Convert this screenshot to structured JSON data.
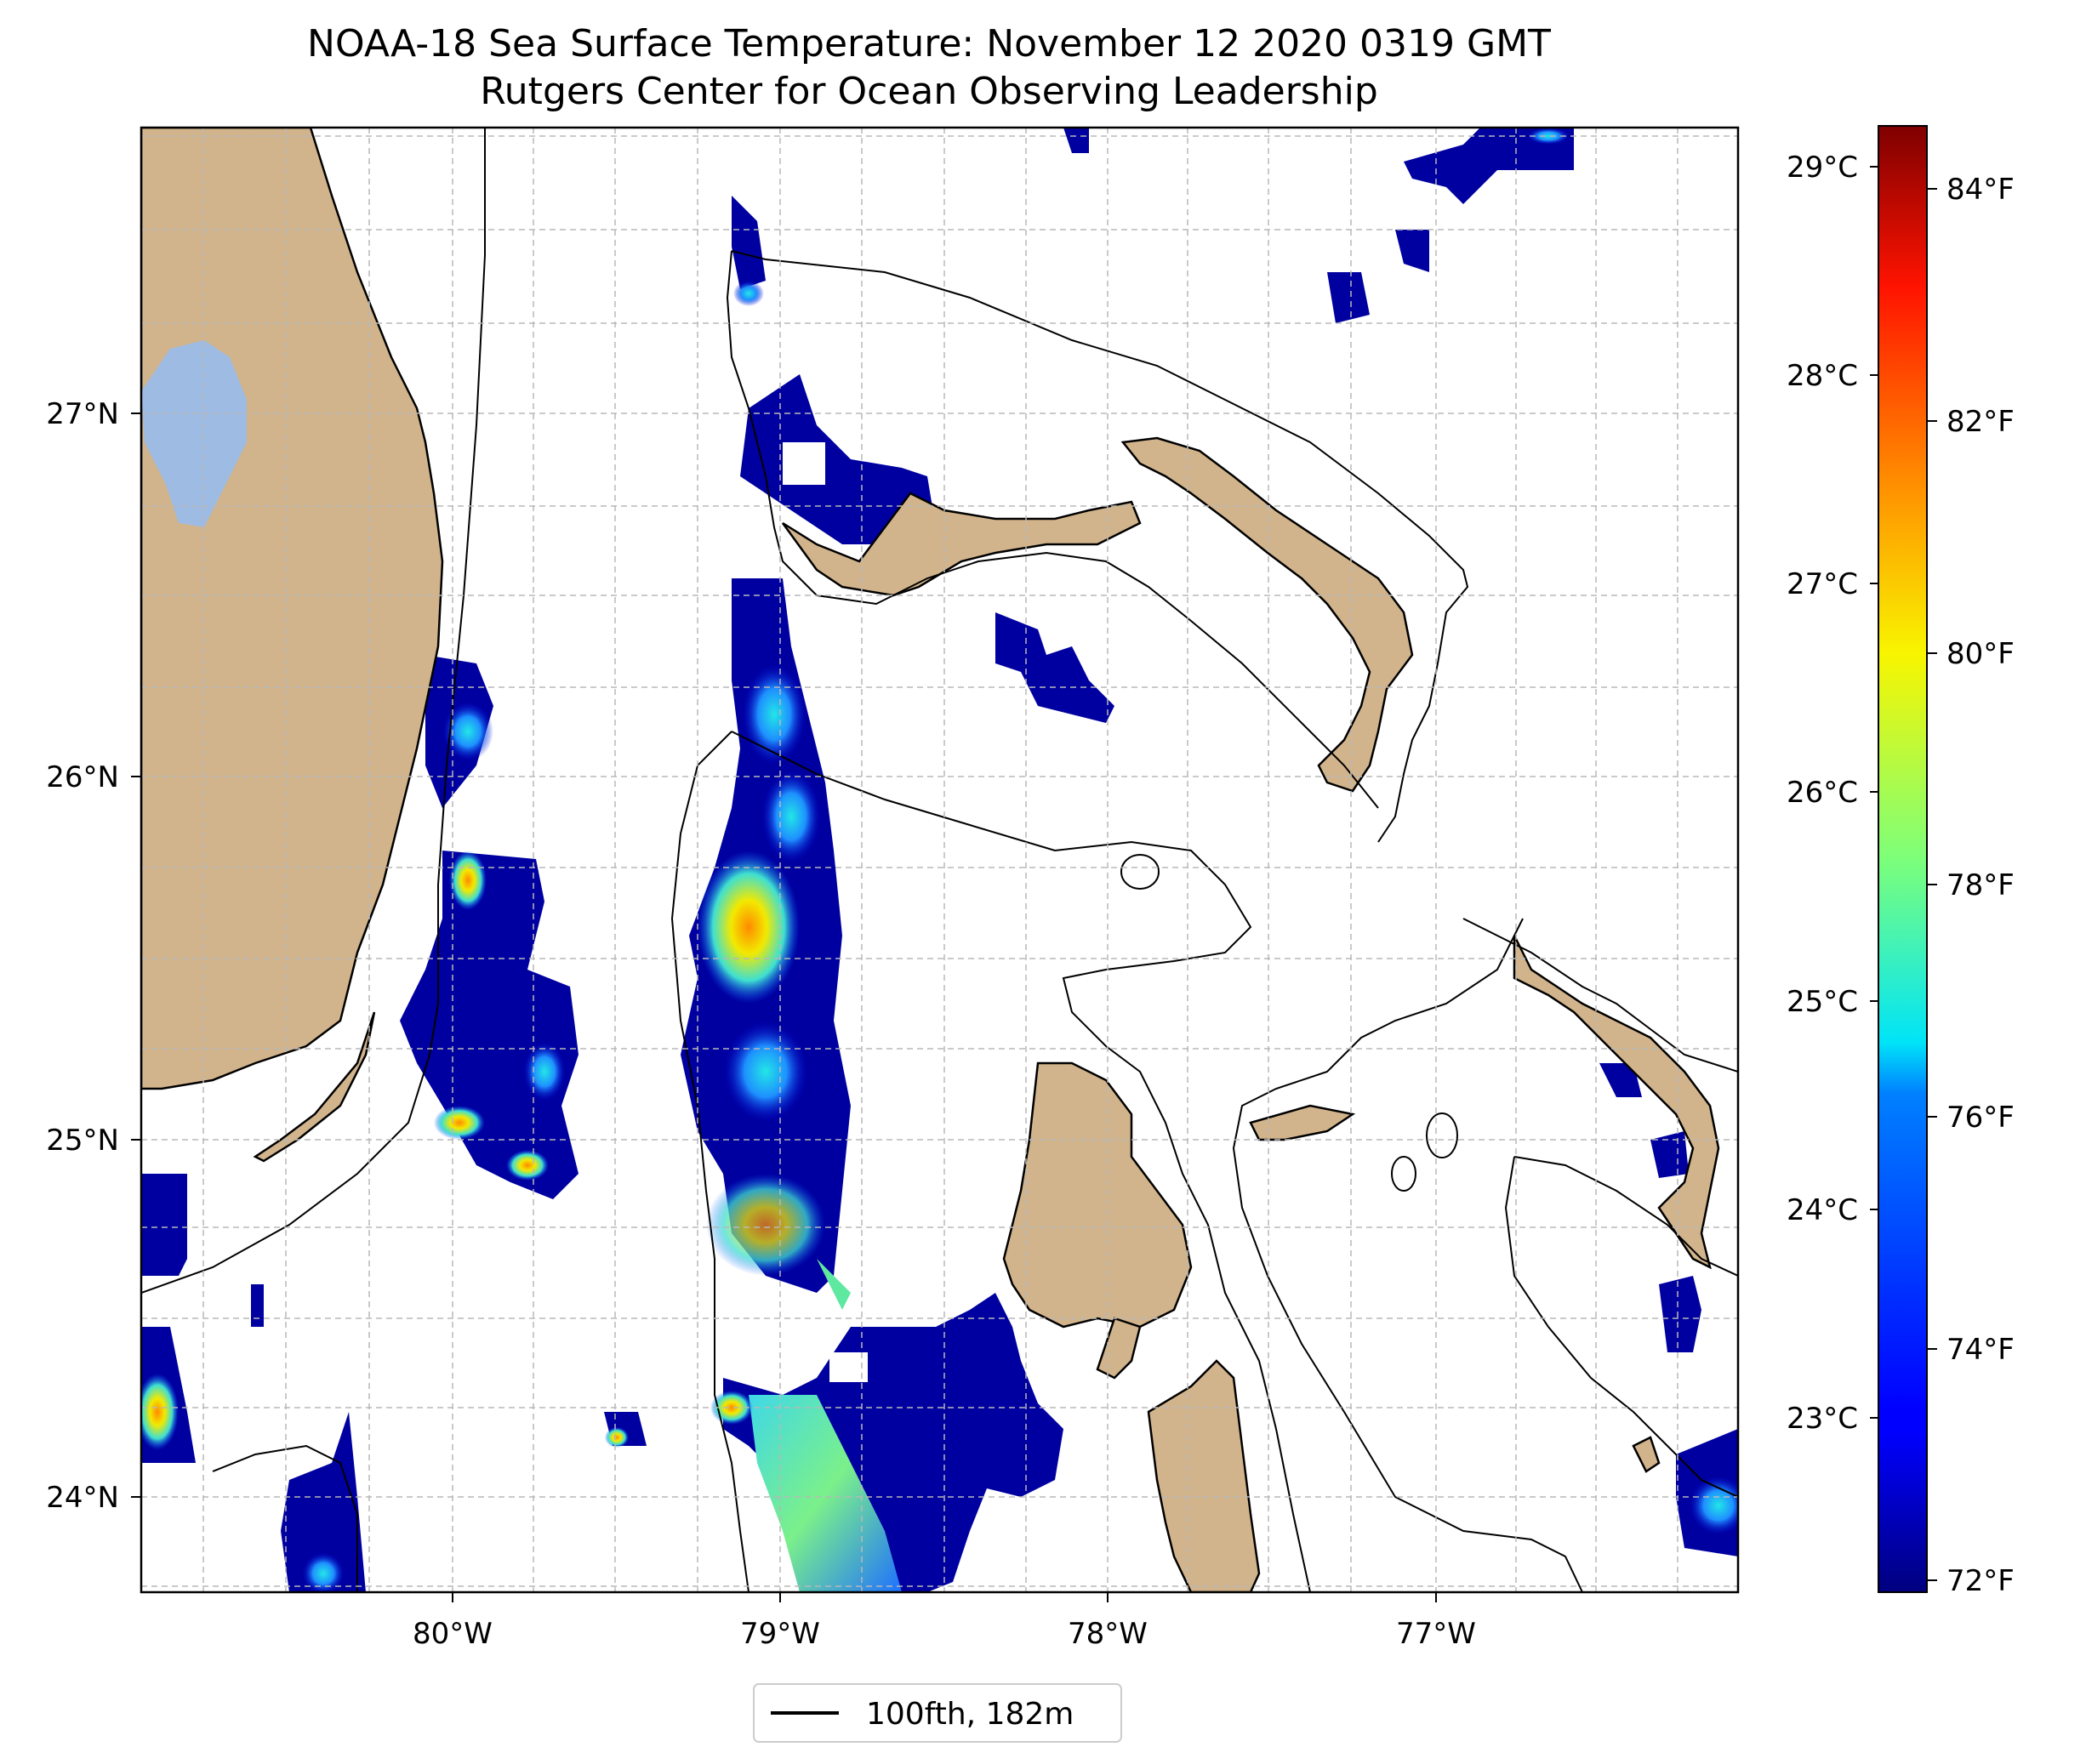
{
  "title_line1": "NOAA-18 Sea Surface Temperature: November 12 2020 0319 GMT",
  "title_line2": "Rutgers Center for Ocean Observing Leadership",
  "map": {
    "lon_labels": [
      "80°W",
      "79°W",
      "78°W",
      "77°W"
    ],
    "lat_labels": [
      "27°N",
      "26°N",
      "25°N",
      "24°N"
    ],
    "colors": {
      "land": "#d2b48c",
      "lake": "#9dbbe3",
      "ocean": "#ffffff",
      "grid": "#bbbbbb"
    },
    "legend": {
      "label": "100fth, 182m"
    }
  },
  "colorbar": {
    "celsius_labels": [
      "29°C",
      "28°C",
      "27°C",
      "26°C",
      "25°C",
      "24°C",
      "23°C"
    ],
    "fahrenheit_labels": [
      "84°F",
      "82°F",
      "80°F",
      "78°F",
      "76°F",
      "74°F",
      "72°F"
    ],
    "colormap": "jet",
    "range_f": [
      71.8,
      85.0
    ]
  },
  "chart_data": {
    "type": "heatmap",
    "title": "NOAA-18 Sea Surface Temperature: November 12 2020 0319 GMT",
    "subtitle": "Rutgers Center for Ocean Observing Leadership",
    "x_ticks": [
      "80°W",
      "79°W",
      "78°W",
      "77°W"
    ],
    "y_ticks": [
      "27°N",
      "26°N",
      "25°N",
      "24°N"
    ],
    "xlim": [
      -80.95,
      -76.05
    ],
    "ylim": [
      23.75,
      27.8
    ],
    "colorbar_ticks_c": [
      23,
      24,
      25,
      26,
      27,
      28,
      29
    ],
    "colorbar_ticks_f": [
      72,
      74,
      76,
      78,
      80,
      82,
      84
    ],
    "legend": [
      "100fth, 182m"
    ]
  }
}
